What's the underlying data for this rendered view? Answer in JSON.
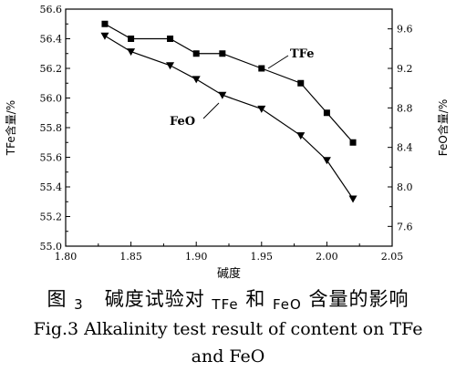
{
  "chart_data": {
    "type": "line",
    "title": "",
    "xlabel": "碱度",
    "ylabel_left": "TFe含量/%",
    "ylabel_right": "FeO含量/%",
    "xlim": [
      1.8,
      2.05
    ],
    "ylim_left": [
      55.0,
      56.6
    ],
    "ylim_right": [
      7.4,
      9.8
    ],
    "xticks": [
      "1.80",
      "1.85",
      "1.90",
      "1.95",
      "2.00",
      "2.05"
    ],
    "yticks_left": [
      "55.0",
      "55.2",
      "55.4",
      "55.6",
      "55.8",
      "56.0",
      "56.2",
      "56.4",
      "56.6"
    ],
    "yticks_right": [
      "7.6",
      "8.0",
      "8.4",
      "8.8",
      "9.2",
      "9.6"
    ],
    "series": [
      {
        "name": "TFe",
        "axis": "left",
        "marker": "square",
        "x": [
          1.83,
          1.85,
          1.88,
          1.9,
          1.92,
          1.95,
          1.98,
          2.0,
          2.02
        ],
        "y": [
          56.5,
          56.4,
          56.4,
          56.3,
          56.3,
          56.2,
          56.1,
          55.9,
          55.7
        ]
      },
      {
        "name": "FeO",
        "axis": "right",
        "marker": "triangle-down",
        "x": [
          1.83,
          1.85,
          1.88,
          1.9,
          1.92,
          1.95,
          1.98,
          2.0,
          2.02
        ],
        "y": [
          9.53,
          9.37,
          9.23,
          9.09,
          8.93,
          8.79,
          8.52,
          8.27,
          7.88
        ]
      }
    ]
  },
  "caption": {
    "cn_prefix": "图",
    "cn_num": "3",
    "cn_part1": "碱度试验对",
    "cn_tfe": "TFe",
    "cn_and": "和",
    "cn_feo": "FeO",
    "cn_part2": "含量的影响",
    "en_line1": "Fig.3   Alkalinity test result of content on TFe",
    "en_line2": "and FeO"
  }
}
